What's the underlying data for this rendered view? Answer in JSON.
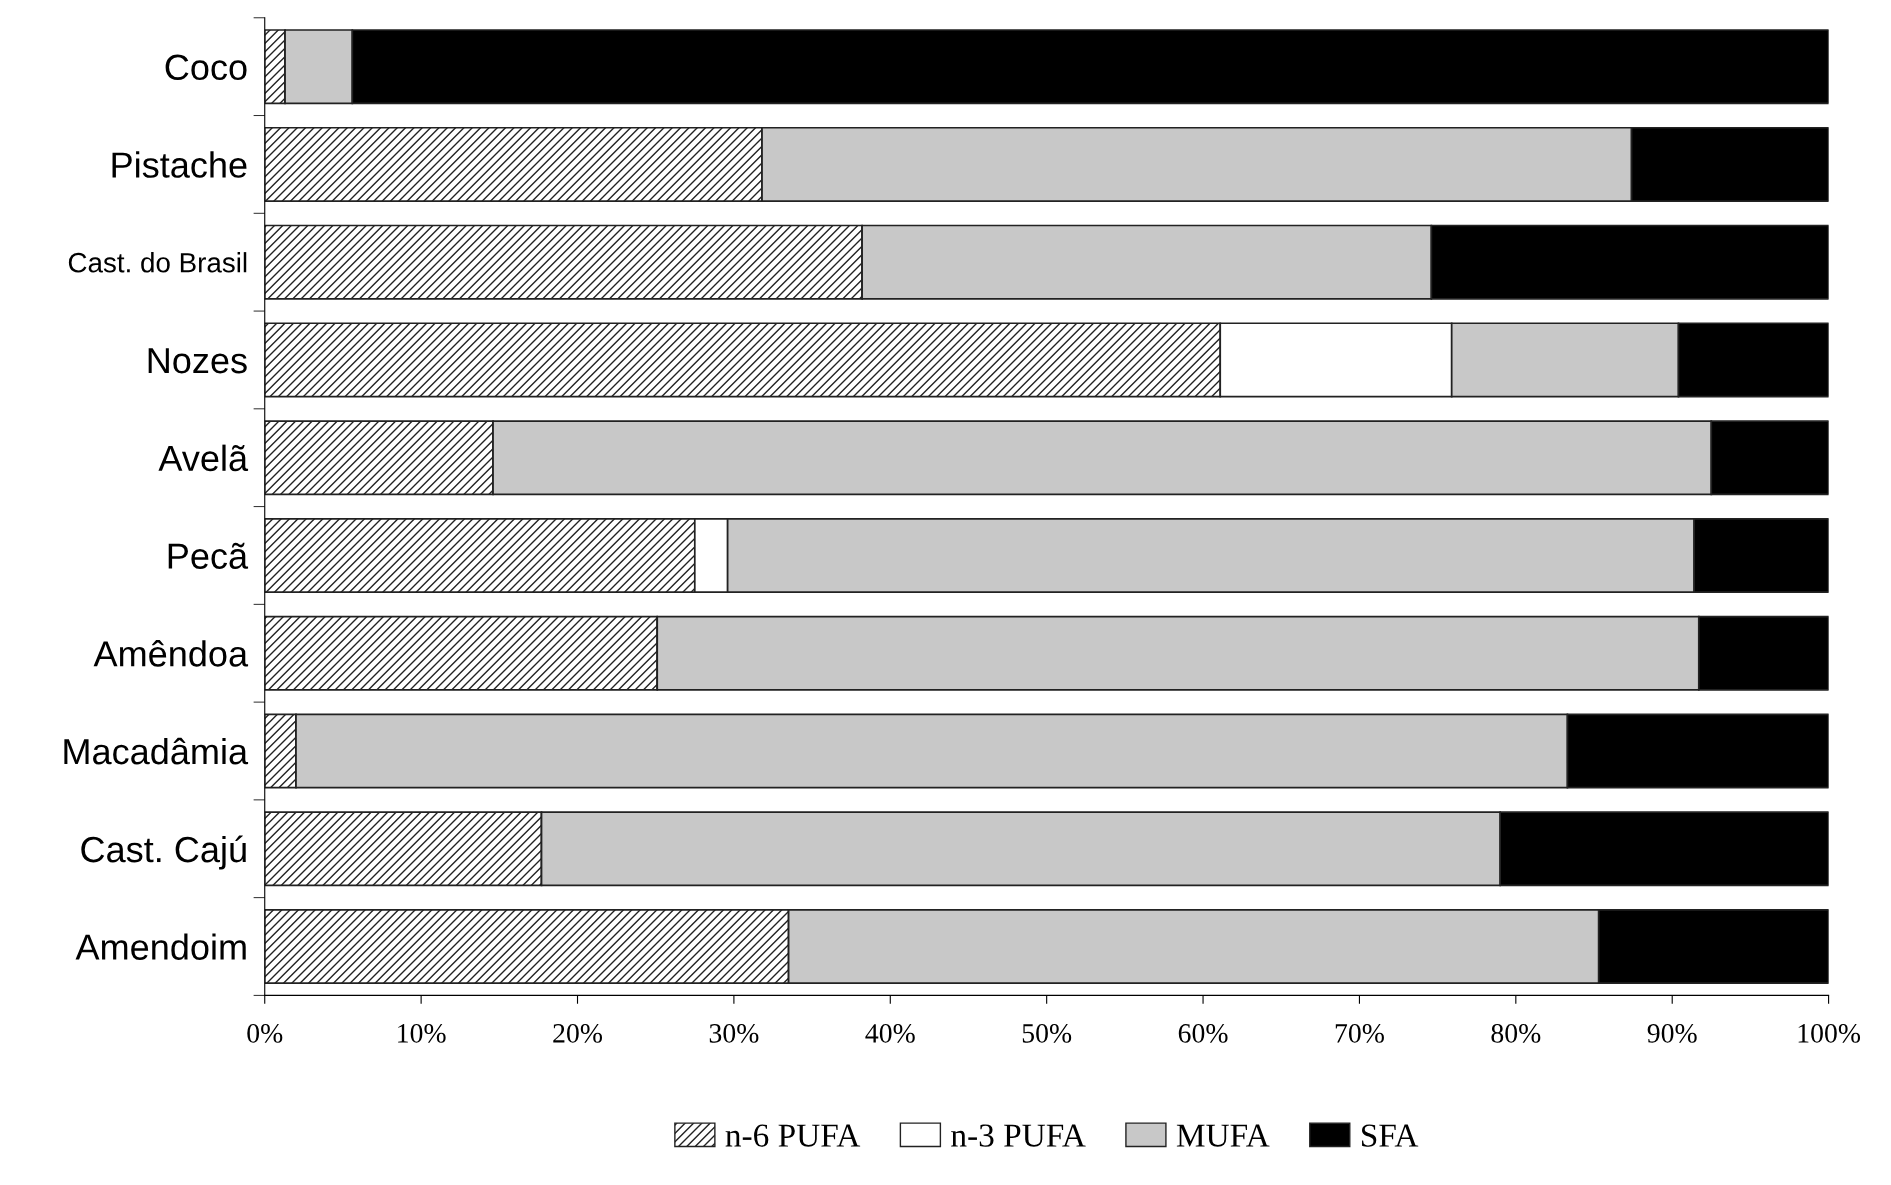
{
  "chart_data": {
    "type": "bar",
    "orientation": "horizontal",
    "stacked": true,
    "categories": [
      "Coco",
      "Pistache",
      "Cast. do Brasil",
      "Nozes",
      "Avelã",
      "Pecã",
      "Amêndoa",
      "Macadâmia",
      "Cast. Cajú",
      "Amendoim"
    ],
    "series": [
      {
        "name": "n-6 PUFA",
        "color": "#222222",
        "values": [
          1.3,
          31.8,
          38.2,
          61.1,
          14.6,
          27.5,
          25.1,
          2.0,
          17.7,
          33.5
        ]
      },
      {
        "name": "n-3 PUFA",
        "color": "#ffffff",
        "values": [
          0,
          0,
          0,
          14.8,
          0,
          2.1,
          0,
          0,
          0,
          0
        ]
      },
      {
        "name": "MUFA",
        "color": "#c8c8c8",
        "values": [
          4.3,
          55.6,
          36.4,
          14.5,
          77.9,
          61.8,
          66.6,
          81.3,
          61.3,
          51.8
        ]
      },
      {
        "name": "SFA",
        "color": "#000000",
        "values": [
          94.4,
          12.6,
          25.4,
          9.6,
          7.5,
          8.6,
          8.3,
          16.7,
          21.0,
          14.7
        ]
      }
    ],
    "xlim": [
      0,
      100
    ],
    "xticks": [
      {
        "value": 0,
        "label": "0%"
      },
      {
        "value": 10,
        "label": "10%"
      },
      {
        "value": 20,
        "label": "20%"
      },
      {
        "value": 30,
        "label": "30%"
      },
      {
        "value": 40,
        "label": "40%"
      },
      {
        "value": 50,
        "label": "50%"
      },
      {
        "value": 60,
        "label": "60%"
      },
      {
        "value": 70,
        "label": "70%"
      },
      {
        "value": 80,
        "label": "80%"
      },
      {
        "value": 90,
        "label": "90%"
      },
      {
        "value": 100,
        "label": "100%"
      }
    ],
    "grid": false,
    "legend": "bottom"
  }
}
